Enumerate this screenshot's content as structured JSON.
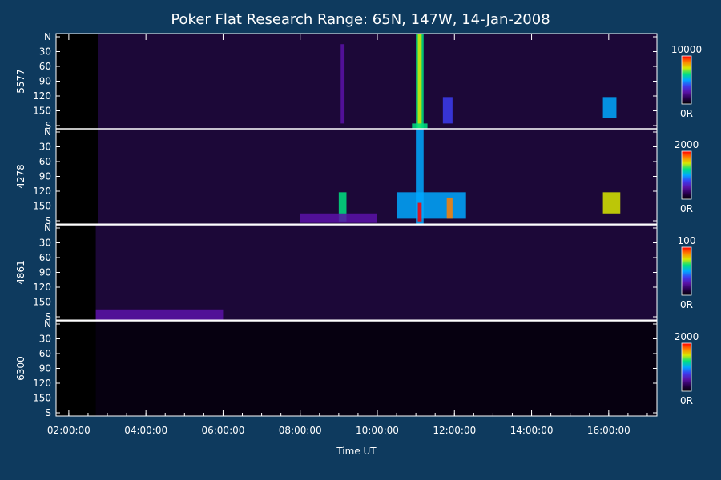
{
  "title": "Poker Flat Research Range: 65N, 147W, 14-Jan-2008",
  "chart_data": {
    "type": "heatmap",
    "title": "Poker Flat Research Range: 65N, 147W, 14-Jan-2008",
    "xlabel": "Time UT",
    "x_tick_labels": [
      "02:00:00",
      "04:00:00",
      "06:00:00",
      "08:00:00",
      "10:00:00",
      "12:00:00",
      "14:00:00",
      "16:00:00"
    ],
    "x_range_hours": [
      1.67,
      17.25
    ],
    "y_tick_labels": [
      "N",
      "30",
      "60",
      "90",
      "120",
      "150",
      "S"
    ],
    "y_range": [
      0,
      180
    ],
    "panels": [
      {
        "name": "5577",
        "cmax_label": "10000",
        "cmin_label": "0R",
        "background": 0.1,
        "data_start_hour": 2.75,
        "blobs": [
          {
            "t0": 11.0,
            "t1": 11.2,
            "y0": 0,
            "y1": 180,
            "level": 0.6
          },
          {
            "t0": 11.05,
            "t1": 11.15,
            "y0": 0,
            "y1": 180,
            "level": 0.75
          },
          {
            "t0": 11.7,
            "t1": 11.95,
            "y0": 120,
            "y1": 170,
            "level": 0.4
          },
          {
            "t0": 9.05,
            "t1": 9.15,
            "y0": 20,
            "y1": 170,
            "level": 0.3
          },
          {
            "t0": 15.85,
            "t1": 16.2,
            "y0": 120,
            "y1": 160,
            "level": 0.45
          },
          {
            "t0": 10.9,
            "t1": 11.3,
            "y0": 170,
            "y1": 180,
            "level": 0.65
          }
        ]
      },
      {
        "name": "4278",
        "cmax_label": "2000",
        "cmin_label": "0R",
        "background": 0.1,
        "data_start_hour": 2.75,
        "blobs": [
          {
            "t0": 11.0,
            "t1": 11.2,
            "y0": 0,
            "y1": 180,
            "level": 0.55
          },
          {
            "t0": 10.5,
            "t1": 12.3,
            "y0": 120,
            "y1": 170,
            "level": 0.45
          },
          {
            "t0": 11.05,
            "t1": 11.15,
            "y0": 140,
            "y1": 175,
            "level": 0.95
          },
          {
            "t0": 11.8,
            "t1": 11.95,
            "y0": 130,
            "y1": 170,
            "level": 0.85
          },
          {
            "t0": 9.0,
            "t1": 9.2,
            "y0": 120,
            "y1": 175,
            "level": 0.6
          },
          {
            "t0": 15.85,
            "t1": 16.3,
            "y0": 120,
            "y1": 160,
            "level": 0.8
          },
          {
            "t0": 8.0,
            "t1": 10.0,
            "y0": 160,
            "y1": 178,
            "level": 0.3
          }
        ]
      },
      {
        "name": "4861",
        "cmax_label": "100",
        "cmin_label": "0R",
        "background": 0.1,
        "data_start_hour": 2.7,
        "blobs": [
          {
            "t0": 2.7,
            "t1": 6.0,
            "y0": 160,
            "y1": 180,
            "level": 0.3
          }
        ]
      },
      {
        "name": "6300",
        "cmax_label": "2000",
        "cmin_label": "0R",
        "background": 0.02,
        "data_start_hour": 2.7,
        "blobs": []
      }
    ],
    "colorscale": [
      "#000000",
      "#2a0050",
      "#5a12a8",
      "#3c3cf0",
      "#00a8ff",
      "#00e080",
      "#d8e800",
      "#ff8000",
      "#ff0000"
    ]
  }
}
